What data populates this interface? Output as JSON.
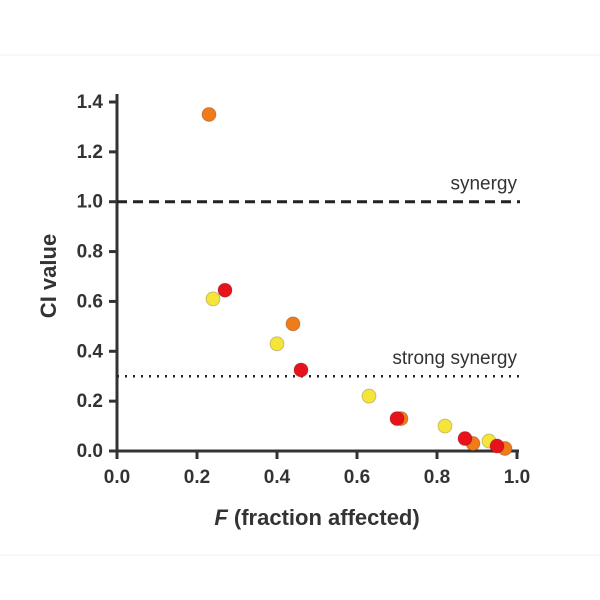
{
  "chart_data": {
    "type": "scatter",
    "xlabel_variable": "F",
    "xlabel": "(fraction affected)",
    "ylabel": "CI value",
    "xlim": [
      0,
      1
    ],
    "ylim": [
      0,
      1.4
    ],
    "xticks": [
      {
        "value": 0,
        "label": "0.0"
      },
      0.2,
      0.4,
      0.6,
      0.8,
      {
        "value": 1,
        "label": "1.0"
      }
    ],
    "yticks": [
      {
        "value": 0,
        "label": "0.0"
      },
      0.2,
      0.4,
      0.6,
      0.8,
      {
        "value": 1,
        "label": "1.0"
      },
      1.2,
      1.4
    ],
    "reference_lines": [
      {
        "value": 1.0,
        "label": "synergy",
        "style": "dashed"
      },
      {
        "value": 0.3,
        "label": "strong synergy",
        "style": "dotted"
      }
    ],
    "series": [
      {
        "color": "#f07b1a",
        "x": [
          0.23,
          0.44,
          0.71,
          0.89,
          0.97
        ],
        "values": [
          1.35,
          0.51,
          0.13,
          0.03,
          0.01
        ]
      },
      {
        "color": "#f5e43a",
        "x": [
          0.24,
          0.4,
          0.63,
          0.82,
          0.93
        ],
        "values": [
          0.61,
          0.43,
          0.22,
          0.1,
          0.04
        ]
      },
      {
        "color": "#e8131a",
        "x": [
          0.27,
          0.46,
          0.7,
          0.87,
          0.95
        ],
        "values": [
          0.645,
          0.325,
          0.13,
          0.05,
          0.02
        ]
      }
    ]
  }
}
